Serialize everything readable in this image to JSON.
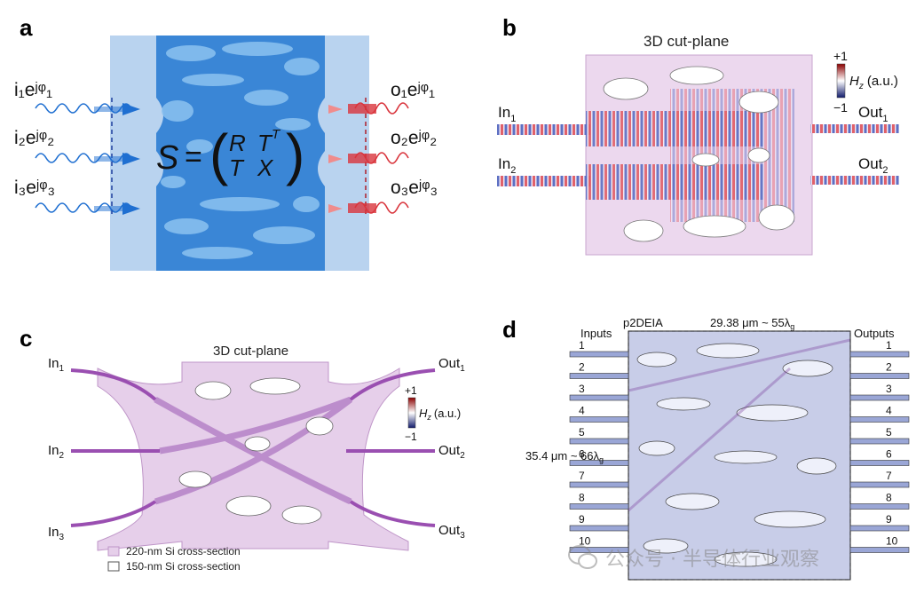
{
  "panel_labels": {
    "a": "a",
    "b": "b",
    "c": "c",
    "d": "d"
  },
  "panel_a": {
    "input_labels": [
      "i₁eʲᵠ₁",
      "i₂eʲᵠ₂",
      "i₃eʲᵠ₃"
    ],
    "output_labels": [
      "o₁eʲᵠ₁",
      "o₂eʲᵠ₂",
      "o₃eʲᵠ₃"
    ],
    "matrix_symbol": "S",
    "equals": "=",
    "matrix_R": "R",
    "matrix_TT": "T",
    "matrix_TT_sup": "T",
    "matrix_T": "T",
    "matrix_X": "X"
  },
  "panel_b": {
    "title": "3D cut-plane",
    "inputs": [
      "In",
      "In"
    ],
    "input_subs": [
      "1",
      "2"
    ],
    "outputs": [
      "Out",
      "Out"
    ],
    "output_subs": [
      "1",
      "2"
    ],
    "colorbar_max": "+1",
    "colorbar_min": "−1",
    "colorbar_label_var": "H",
    "colorbar_label_sub": "z",
    "colorbar_label_unit": "(a.u.)"
  },
  "panel_c": {
    "title": "3D cut-plane",
    "inputs": [
      "In",
      "In",
      "In"
    ],
    "input_subs": [
      "1",
      "2",
      "3"
    ],
    "outputs": [
      "Out",
      "Out",
      "Out"
    ],
    "output_subs": [
      "1",
      "2",
      "3"
    ],
    "colorbar_max": "+1",
    "colorbar_min": "−1",
    "colorbar_label_var": "H",
    "colorbar_label_sub": "z",
    "colorbar_label_unit": "(a.u.)",
    "legend": [
      "220-nm Si cross-section",
      "150-nm Si cross-section"
    ]
  },
  "panel_d": {
    "device_name": "p2DEIA",
    "width_label": "29.38 μm ~ 55λ",
    "width_sub": "g",
    "height_label": "35.4 μm ~ 66λ",
    "height_sub": "g",
    "inputs_title": "Inputs",
    "outputs_title": "Outputs",
    "port_numbers": [
      "1",
      "2",
      "3",
      "4",
      "5",
      "6",
      "7",
      "8",
      "9",
      "10"
    ]
  },
  "watermark": {
    "text": "公众号 · 半导体行业观察",
    "icon": "wechat-icon"
  },
  "colors": {
    "accent_blue": "#1f6fd1",
    "device_blue": "#3a86d6",
    "light_blue": "#9ccaf0",
    "red": "#d9343c",
    "purple": "#a05cb8",
    "panel_bg": "#b9d3ef"
  }
}
